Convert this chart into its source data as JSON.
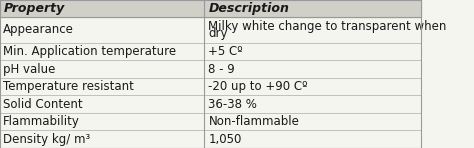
{
  "headers": [
    "Property",
    "Description"
  ],
  "rows": [
    [
      "Appearance",
      "Milky white change to transparent when\ndry"
    ],
    [
      "Min. Application temperature",
      "+5 Cº"
    ],
    [
      "pH value",
      "8 - 9"
    ],
    [
      "Temperature resistant",
      "-20 up to +90 Cº"
    ],
    [
      "Solid Content",
      "36-38 %"
    ],
    [
      "Flammability",
      "Non-flammable"
    ],
    [
      "Density kg/ m³",
      "1,050"
    ]
  ],
  "col_split": 0.485,
  "bg_color": "#f5f5f0",
  "header_bg": "#d0cfc8",
  "line_color": "#999999",
  "text_color": "#1a1a1a",
  "header_fontsize": 9,
  "body_fontsize": 8.5,
  "figsize": [
    4.74,
    1.48
  ],
  "dpi": 100
}
